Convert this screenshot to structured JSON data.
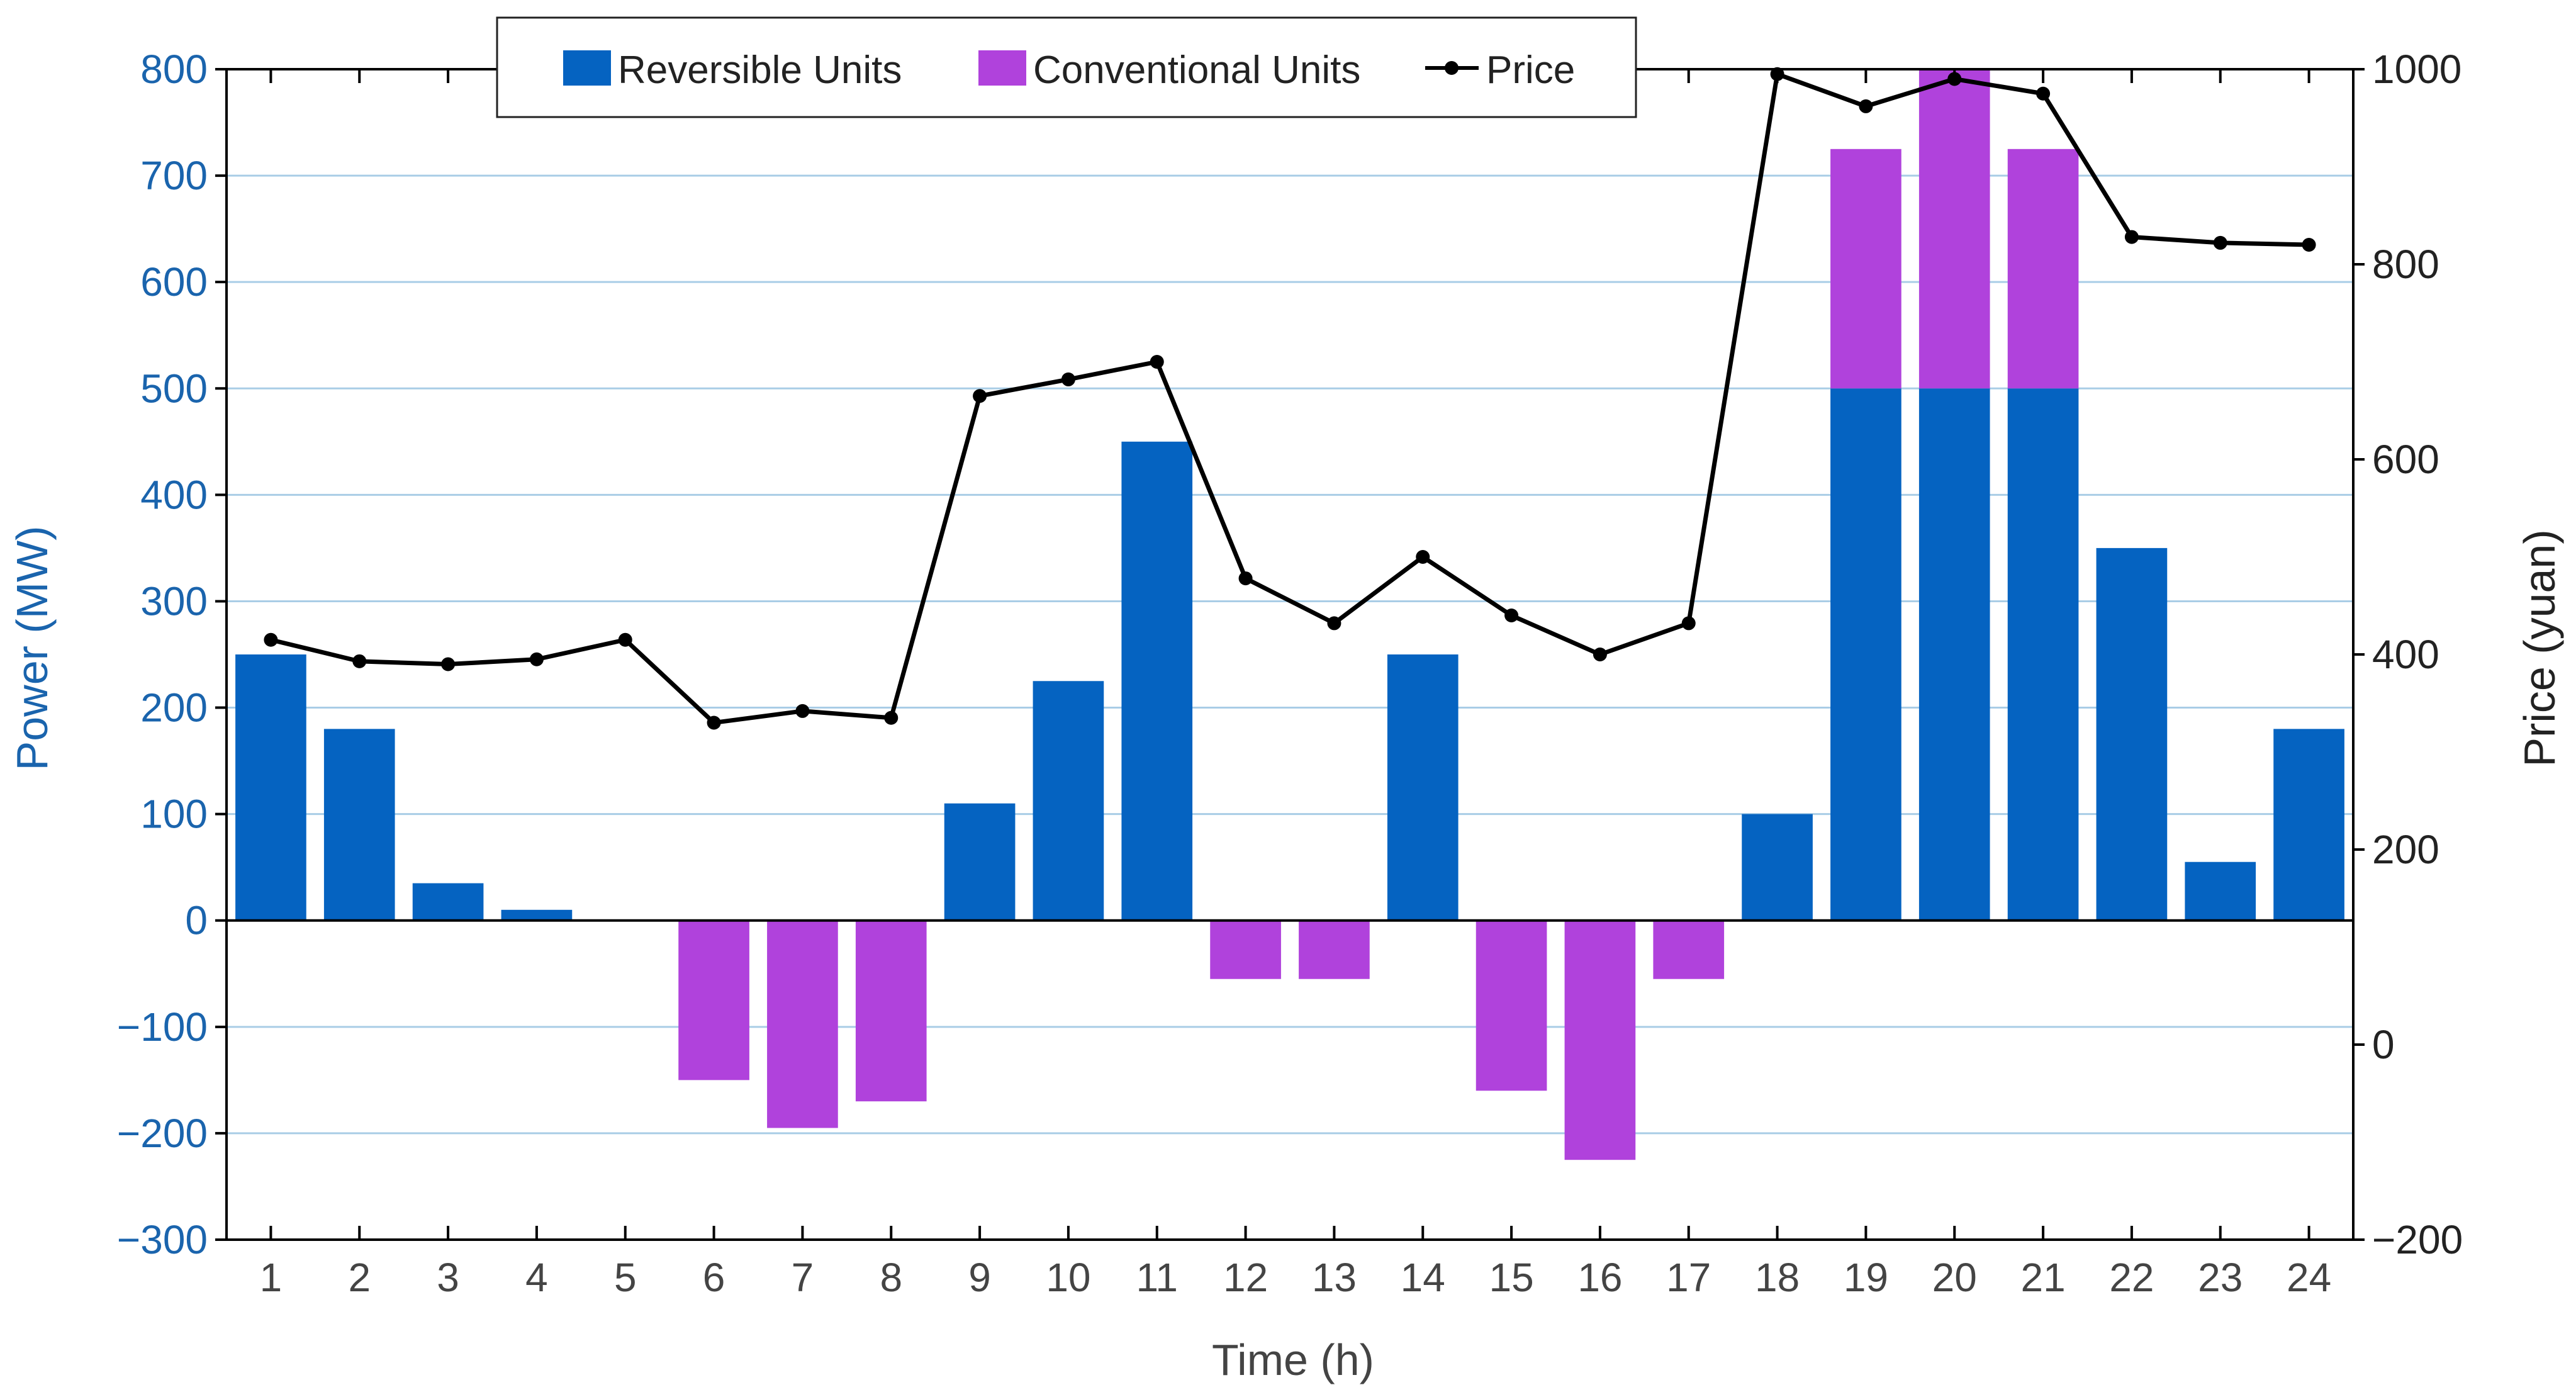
{
  "chart_data": {
    "type": "bar",
    "title": "",
    "xlabel": "Time (h)",
    "ylabel": "Power (MW)",
    "y2label": "Price (yuan)",
    "x": [
      1,
      2,
      3,
      4,
      5,
      6,
      7,
      8,
      9,
      10,
      11,
      12,
      13,
      14,
      15,
      16,
      17,
      18,
      19,
      20,
      21,
      22,
      23,
      24
    ],
    "ylim": [
      -300,
      800
    ],
    "y2lim": [
      -200,
      1000
    ],
    "yticks": [
      -300,
      -200,
      -100,
      0,
      100,
      200,
      300,
      400,
      500,
      600,
      700,
      800
    ],
    "yticklabels": [
      "−300",
      "−200",
      "−100",
      "0",
      "100",
      "200",
      "300",
      "400",
      "500",
      "600",
      "700",
      "800"
    ],
    "y2ticks": [
      -200,
      0,
      200,
      400,
      600,
      800,
      1000
    ],
    "y2ticklabels": [
      "−200",
      "0",
      "200",
      "400",
      "600",
      "800",
      "1000"
    ],
    "grid": "horizontal",
    "legend": "top-center",
    "series": [
      {
        "name": "Reversible Units",
        "type": "bar",
        "axis": "left",
        "color": "#0563c1",
        "values": [
          250,
          180,
          35,
          10,
          0,
          0,
          0,
          0,
          110,
          225,
          450,
          0,
          0,
          250,
          0,
          0,
          0,
          100,
          500,
          500,
          500,
          350,
          55,
          180
        ]
      },
      {
        "name": "Conventional Units",
        "type": "bar",
        "axis": "left",
        "stacked": true,
        "color": "#b042dc",
        "values": [
          0,
          0,
          0,
          0,
          0,
          -150,
          -195,
          -170,
          0,
          0,
          0,
          -55,
          -55,
          0,
          -160,
          -225,
          -55,
          0,
          225,
          300,
          225,
          0,
          0,
          0
        ]
      },
      {
        "name": "Price",
        "type": "line",
        "axis": "right",
        "color": "#000000",
        "values": [
          415,
          393,
          390,
          395,
          415,
          330,
          342,
          335,
          665,
          682,
          700,
          478,
          432,
          500,
          440,
          400,
          432,
          995,
          962,
          990,
          975,
          828,
          822,
          820
        ]
      }
    ]
  },
  "colors": {
    "left_axis": "#1a64ad",
    "grid": "#a9cde6",
    "right_axis": "#222222"
  }
}
